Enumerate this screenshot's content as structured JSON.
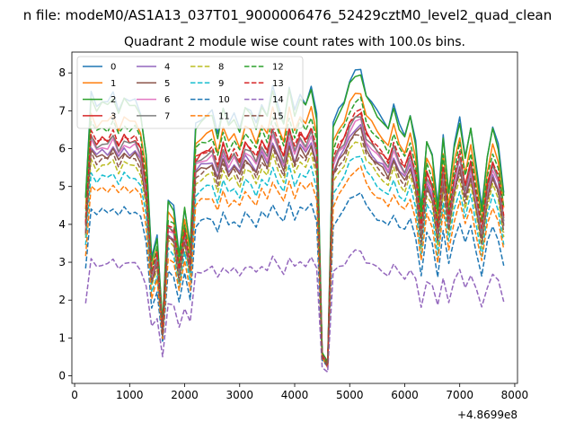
{
  "figure": {
    "suptitle": "n file: modeM0/AS1A13_037T01_9000006476_52429cztM0_level2_quad_clean",
    "title": "Quadrant 2 module wise count rates with 100.0s bins."
  },
  "chart_data": {
    "type": "line",
    "title": "Quadrant 2 module wise count rates with 100.0s bins.",
    "xlabel": "",
    "ylabel": "",
    "x_offset_label": "+4.8699e8",
    "xlim": [
      -50,
      8050
    ],
    "ylim": [
      -0.2,
      8.55
    ],
    "xticks": [
      0,
      1000,
      2000,
      3000,
      4000,
      5000,
      6000,
      7000,
      8000
    ],
    "yticks": [
      0,
      1,
      2,
      3,
      4,
      5,
      6,
      7,
      8
    ],
    "grid": false,
    "legend": "top-left, 4 columns",
    "x": [
      200,
      300,
      400,
      500,
      600,
      700,
      800,
      900,
      1000,
      1100,
      1200,
      1300,
      1400,
      1500,
      1600,
      1700,
      1800,
      1900,
      2000,
      2100,
      2200,
      2300,
      2400,
      2500,
      2600,
      2700,
      2800,
      2900,
      3000,
      3100,
      3200,
      3300,
      3400,
      3500,
      3600,
      3700,
      3800,
      3900,
      4000,
      4100,
      4200,
      4300,
      4400,
      4500,
      4600,
      4700,
      4800,
      4900,
      5000,
      5100,
      5200,
      5300,
      5400,
      5500,
      5600,
      5700,
      5800,
      5900,
      6000,
      6100,
      6200,
      6300,
      6400,
      6500,
      6600,
      6700,
      6800,
      6900,
      7000,
      7100,
      7200,
      7300,
      7400,
      7500,
      7600,
      7700,
      7800
    ],
    "base_shape": [
      0.58,
      0.92,
      0.88,
      0.9,
      0.89,
      0.92,
      0.87,
      0.91,
      0.89,
      0.9,
      0.86,
      0.72,
      0.38,
      0.46,
      0.17,
      0.57,
      0.55,
      0.4,
      0.55,
      0.42,
      0.82,
      0.84,
      0.85,
      0.86,
      0.79,
      0.88,
      0.82,
      0.85,
      0.81,
      0.88,
      0.86,
      0.82,
      0.89,
      0.85,
      0.94,
      0.88,
      0.83,
      0.94,
      0.86,
      0.92,
      0.89,
      0.94,
      0.85,
      0.08,
      0.04,
      0.82,
      0.87,
      0.9,
      0.96,
      0.99,
      1.0,
      0.92,
      0.89,
      0.86,
      0.84,
      0.81,
      0.88,
      0.82,
      0.79,
      0.85,
      0.76,
      0.55,
      0.77,
      0.72,
      0.55,
      0.79,
      0.6,
      0.75,
      0.84,
      0.72,
      0.81,
      0.68,
      0.55,
      0.72,
      0.81,
      0.75,
      0.6
    ],
    "series": [
      {
        "name": "0",
        "color": "#1f77b4",
        "dash": "solid",
        "peak": 8.1
      },
      {
        "name": "1",
        "color": "#ff7f0e",
        "dash": "solid",
        "peak": 7.5
      },
      {
        "name": "2",
        "color": "#2ca02c",
        "dash": "solid",
        "peak": 8.0
      },
      {
        "name": "3",
        "color": "#d62728",
        "dash": "solid",
        "peak": 6.95
      },
      {
        "name": "4",
        "color": "#9467bd",
        "dash": "solid",
        "peak": 6.6
      },
      {
        "name": "5",
        "color": "#8c564b",
        "dash": "solid",
        "peak": 6.5
      },
      {
        "name": "6",
        "color": "#e377c2",
        "dash": "solid",
        "peak": 6.75
      },
      {
        "name": "7",
        "color": "#7f7f7f",
        "dash": "solid",
        "peak": 6.85
      },
      {
        "name": "8",
        "color": "#bcbd22",
        "dash": "dashed",
        "peak": 6.2
      },
      {
        "name": "9",
        "color": "#17becf",
        "dash": "dashed",
        "peak": 5.85
      },
      {
        "name": "10",
        "color": "#1f77b4",
        "dash": "dashed",
        "peak": 4.85
      },
      {
        "name": "11",
        "color": "#ff7f0e",
        "dash": "dashed",
        "peak": 5.5
      },
      {
        "name": "12",
        "color": "#2ca02c",
        "dash": "dashed",
        "peak": 7.3
      },
      {
        "name": "13",
        "color": "#d62728",
        "dash": "dashed",
        "peak": 7.0
      },
      {
        "name": "14",
        "color": "#9467bd",
        "dash": "dashed",
        "peak": 3.3
      },
      {
        "name": "15",
        "color": "#8c564b",
        "dash": "dashed",
        "peak": 6.4
      }
    ]
  }
}
